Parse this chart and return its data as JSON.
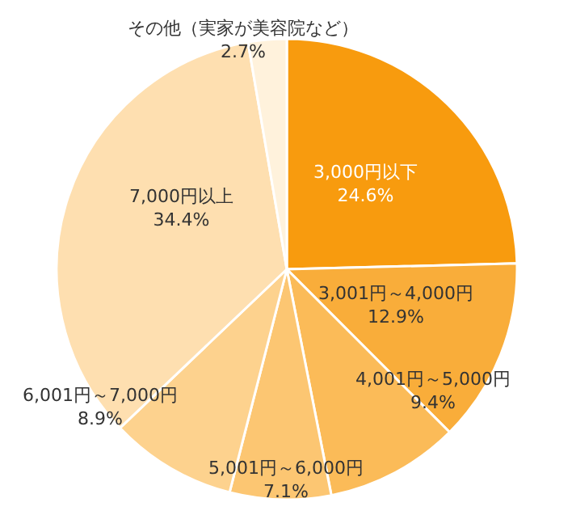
{
  "chart_data": {
    "type": "pie",
    "categories": [
      "3,000円以下",
      "3,001円～4,000円",
      "4,001円～5,000円",
      "5,001円～6,000円",
      "6,001円～7,000円",
      "7,000円以上",
      "その他（実家が美容院など）"
    ],
    "values": [
      24.6,
      12.9,
      9.4,
      7.1,
      8.9,
      34.4,
      2.7
    ],
    "value_labels": [
      "24.6%",
      "12.9%",
      "9.4%",
      "7.1%",
      "8.9%",
      "34.4%",
      "2.7%"
    ],
    "colors": [
      "#f89b0e",
      "#f9ad3a",
      "#fbbb58",
      "#fcc672",
      "#fdd28e",
      "#fedfb0",
      "#fff2dc"
    ],
    "legend": false
  }
}
